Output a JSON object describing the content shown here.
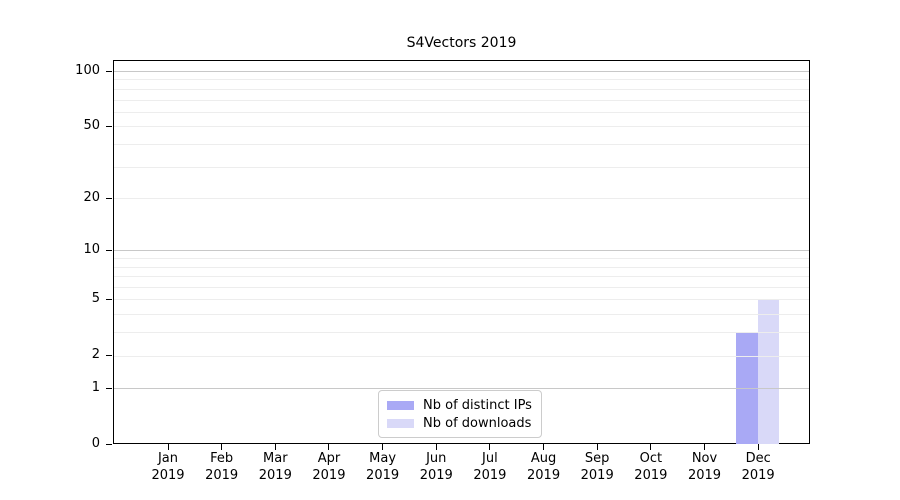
{
  "chart_data": {
    "type": "bar",
    "title": "S4Vectors 2019",
    "categories": [
      "Jan",
      "Feb",
      "Mar",
      "Apr",
      "May",
      "Jun",
      "Jul",
      "Aug",
      "Sep",
      "Oct",
      "Nov",
      "Dec"
    ],
    "year_label": "2019",
    "series": [
      {
        "name": "Nb of distinct IPs",
        "color": "#a9a9f5",
        "values": [
          0,
          0,
          0,
          0,
          0,
          0,
          0,
          0,
          0,
          0,
          0,
          3
        ]
      },
      {
        "name": "Nb of downloads",
        "color": "#d9d9f8",
        "values": [
          0,
          0,
          0,
          0,
          0,
          0,
          0,
          0,
          0,
          0,
          0,
          5
        ]
      }
    ],
    "xlabel": "",
    "ylabel": "",
    "yscale": "log1p",
    "ylim": [
      0,
      114
    ],
    "yticks": [
      0,
      1,
      2,
      5,
      10,
      20,
      50,
      100
    ],
    "y_major_gridlines": [
      1,
      10,
      100
    ],
    "y_minor_gridlines": [
      2,
      3,
      4,
      5,
      6,
      7,
      8,
      9,
      20,
      30,
      40,
      50,
      60,
      70,
      80,
      90
    ],
    "grid": true,
    "legend_position": "lower center",
    "colors": {
      "axis": "#000000",
      "text": "#000000",
      "grid_major": "#c8c8c8",
      "grid_minor": "#ededed",
      "legend_border": "#cccccc",
      "legend_bg": "#ffffff"
    }
  }
}
